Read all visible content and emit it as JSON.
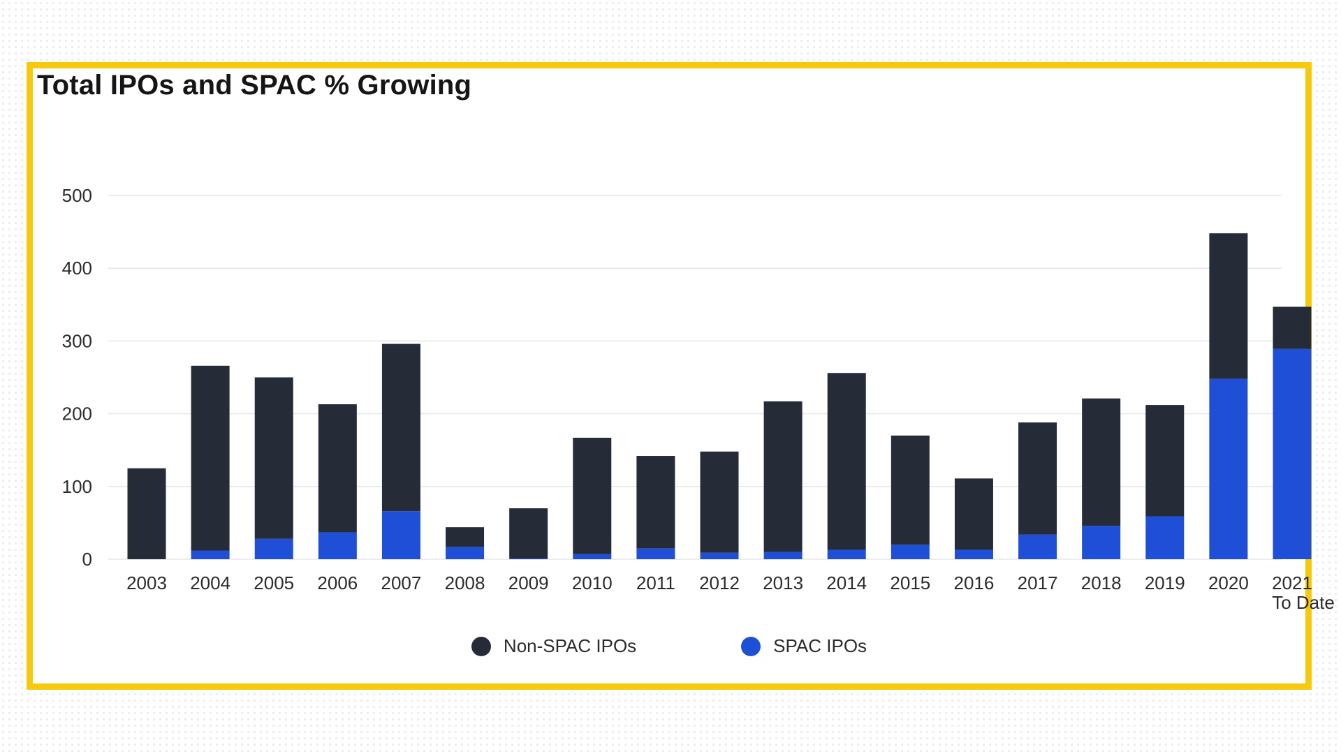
{
  "chart_data": {
    "type": "bar",
    "stacked": true,
    "title": "Total IPOs and SPAC % Growing",
    "categories": [
      "2003",
      "2004",
      "2005",
      "2006",
      "2007",
      "2008",
      "2009",
      "2010",
      "2011",
      "2012",
      "2013",
      "2014",
      "2015",
      "2016",
      "2017",
      "2018",
      "2019",
      "2020",
      "2021\nTo Date"
    ],
    "series": [
      {
        "name": "SPAC IPOs",
        "color": "#1f4fd6",
        "values": [
          0,
          12,
          28,
          37,
          66,
          17,
          1,
          7,
          15,
          9,
          10,
          13,
          20,
          13,
          34,
          46,
          59,
          248,
          289
        ]
      },
      {
        "name": "Non-SPAC IPOs",
        "color": "#262b38",
        "values": [
          125,
          254,
          222,
          176,
          230,
          27,
          69,
          160,
          127,
          139,
          207,
          243,
          150,
          98,
          154,
          175,
          153,
          200,
          58
        ]
      }
    ],
    "yticks": [
      0,
      100,
      200,
      300,
      400,
      500
    ],
    "ylim": [
      0,
      500
    ],
    "xlabel": "",
    "ylabel": "",
    "grid": true,
    "legend": {
      "position": "bottom-center",
      "order": [
        "Non-SPAC IPOs",
        "SPAC IPOs"
      ]
    }
  },
  "colors": {
    "frame_border": "#f6c90e",
    "non_spac": "#262b38",
    "spac": "#1f4fd6",
    "grid": "#e6e6e6"
  }
}
